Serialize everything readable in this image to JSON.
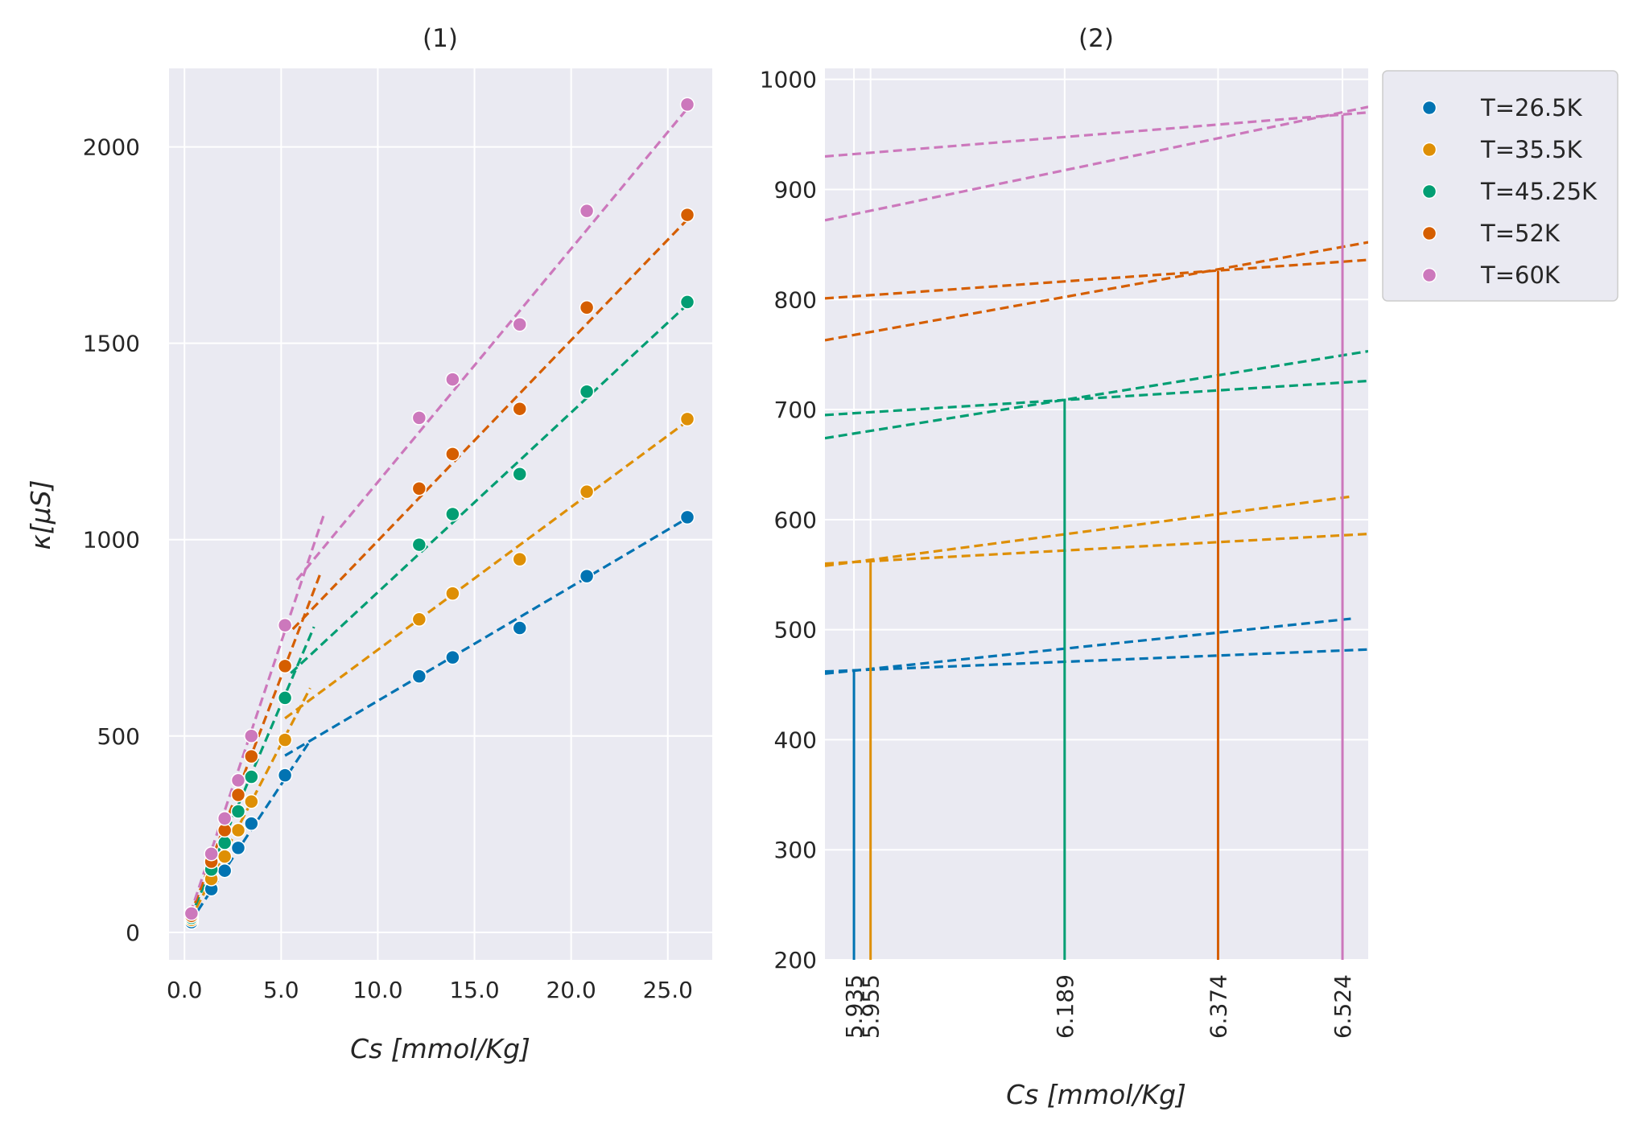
{
  "colors": {
    "T=26.5K": "#0173b2",
    "T=35.5K": "#de8f05",
    "T=45.25K": "#029e73",
    "T=52K": "#d55e00",
    "T=60K": "#cc78bc",
    "background": "#eaeaf2",
    "grid": "#ffffff"
  },
  "chart_data": [
    {
      "type": "scatter",
      "title": "(1)",
      "xlabel": "Cs [mmol/Kg]",
      "ylabel": "κ[μS]",
      "xlim": [
        -0.8,
        27.3
      ],
      "ylim": [
        -70,
        2200
      ],
      "xticks": [
        0.0,
        5.0,
        10.0,
        15.0,
        20.0,
        25.0
      ],
      "xtick_labels": [
        "0.0",
        "5.0",
        "10.0",
        "15.0",
        "20.0",
        "25.0"
      ],
      "yticks": [
        0,
        500,
        1000,
        1500,
        2000
      ],
      "ytick_labels": [
        "0",
        "500",
        "1000",
        "1500",
        "2000"
      ],
      "grid": true,
      "x": [
        0.36,
        1.39,
        2.08,
        2.78,
        3.46,
        5.2,
        12.14,
        13.87,
        17.34,
        20.81,
        26.01
      ],
      "series": [
        {
          "name": "T=26.5K",
          "y": [
            26,
            110,
            157,
            215,
            277,
            400,
            652,
            700,
            775,
            907,
            1057
          ],
          "fit_low": [
            [
              0.3,
              26
            ],
            [
              6.5,
              488
            ]
          ],
          "fit_high": [
            [
              5.2,
              450
            ],
            [
              26.3,
              1063
            ]
          ]
        },
        {
          "name": "T=35.5K",
          "y": [
            32,
            136,
            193,
            260,
            333,
            490,
            797,
            863,
            950,
            1122,
            1307
          ],
          "fit_low": [
            [
              0.3,
              32
            ],
            [
              6.5,
              622
            ]
          ],
          "fit_high": [
            [
              5.2,
              545
            ],
            [
              26.3,
              1312
            ]
          ]
        },
        {
          "name": "T=45.25K",
          "y": [
            37,
            160,
            228,
            308,
            396,
            597,
            987,
            1065,
            1167,
            1377,
            1605
          ],
          "fit_low": [
            [
              0.3,
              37
            ],
            [
              6.7,
              778
            ]
          ],
          "fit_high": [
            [
              5.5,
              660
            ],
            [
              26.3,
              1612
            ]
          ]
        },
        {
          "name": "T=52K",
          "y": [
            42,
            180,
            260,
            350,
            448,
            678,
            1130,
            1218,
            1333,
            1591,
            1827
          ],
          "fit_low": [
            [
              0.3,
              42
            ],
            [
              7.0,
              910
            ]
          ],
          "fit_high": [
            [
              5.6,
              772
            ],
            [
              26.3,
              1830
            ]
          ]
        },
        {
          "name": "T=60K",
          "y": [
            48,
            200,
            290,
            387,
            500,
            782,
            1310,
            1408,
            1548,
            1837,
            2108
          ],
          "fit_low": [
            [
              0.3,
              48
            ],
            [
              7.2,
              1062
            ]
          ],
          "fit_high": [
            [
              5.8,
              897
            ],
            [
              26.3,
              2115
            ]
          ]
        }
      ]
    },
    {
      "type": "line",
      "title": "(2)",
      "xlabel": "Cs [mmol/Kg]",
      "xlim": [
        5.9,
        6.555
      ],
      "ylim": [
        200,
        1010
      ],
      "yticks": [
        200,
        300,
        400,
        500,
        600,
        700,
        800,
        900,
        1000
      ],
      "ytick_labels": [
        "200",
        "300",
        "400",
        "500",
        "600",
        "700",
        "800",
        "900",
        "1000"
      ],
      "xticks": [
        5.935,
        5.955,
        6.189,
        6.374,
        6.524
      ],
      "xtick_labels": [
        "5.935",
        "5.955",
        "6.189",
        "6.374",
        "6.524"
      ],
      "grid": true,
      "series": [
        {
          "name": "T=26.5K",
          "crossing": [
            5.935,
            463
          ],
          "lines": [
            [
              [
                5.9,
                460
              ],
              [
                6.535,
                510
              ]
            ],
            [
              [
                5.9,
                462
              ],
              [
                6.555,
                482
              ]
            ]
          ]
        },
        {
          "name": "T=35.5K",
          "crossing": [
            5.955,
            563
          ],
          "lines": [
            [
              [
                5.9,
                558
              ],
              [
                6.535,
                621
              ]
            ],
            [
              [
                5.9,
                560
              ],
              [
                6.555,
                587
              ]
            ]
          ]
        },
        {
          "name": "T=45.25K",
          "crossing": [
            6.189,
            708
          ],
          "lines": [
            [
              [
                5.9,
                674
              ],
              [
                6.555,
                753
              ]
            ],
            [
              [
                5.9,
                695
              ],
              [
                6.555,
                726
              ]
            ]
          ]
        },
        {
          "name": "T=52K",
          "crossing": [
            6.374,
            826
          ],
          "lines": [
            [
              [
                5.9,
                763
              ],
              [
                6.555,
                852
              ]
            ],
            [
              [
                5.9,
                801
              ],
              [
                6.555,
                836
              ]
            ]
          ]
        },
        {
          "name": "T=60K",
          "crossing": [
            6.524,
            968
          ],
          "lines": [
            [
              [
                5.9,
                872
              ],
              [
                6.555,
                975
              ]
            ],
            [
              [
                5.9,
                930
              ],
              [
                6.555,
                970
              ]
            ]
          ]
        }
      ],
      "legend": {
        "placement": "outside upper right",
        "entries": [
          "T=26.5K",
          "T=35.5K",
          "T=45.25K",
          "T=52K",
          "T=60K"
        ]
      }
    }
  ]
}
